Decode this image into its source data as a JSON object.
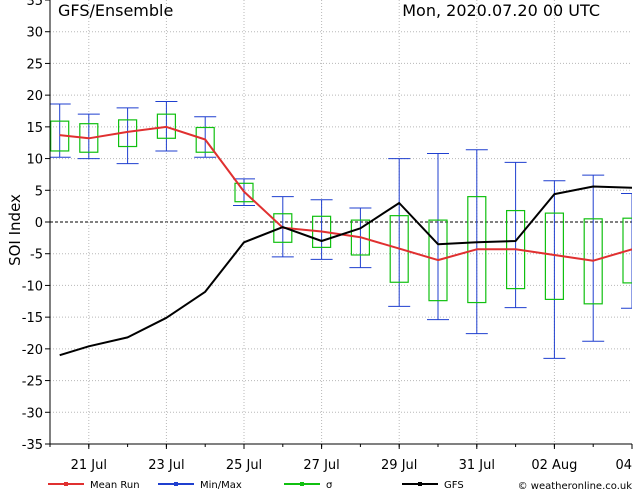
{
  "header": {
    "left": "GFS/Ensemble",
    "right": "Mon, 2020.07.20   00 UTC"
  },
  "credit": "© weatheronline.co.uk",
  "chart_data": {
    "type": "line",
    "title": "GFS/Ensemble",
    "ylabel": "SOI Index",
    "xlabel": "",
    "ylim": [
      -35,
      35
    ],
    "yticks": [
      -35,
      -30,
      -25,
      -20,
      -15,
      -10,
      -5,
      0,
      5,
      10,
      15,
      20,
      25,
      30,
      35
    ],
    "xlim": [
      20.0,
      35.0
    ],
    "xtick_values": [
      21,
      23,
      25,
      27,
      29,
      31,
      33,
      35
    ],
    "xtick_labels": [
      "21 Jul",
      "23 Jul",
      "25 Jul",
      "27 Jul",
      "29 Jul",
      "31 Jul",
      "02 Aug",
      "04"
    ],
    "grid": true,
    "zero_line": true,
    "colors": {
      "mean": "#e03030",
      "minmax": "#1f3fcf",
      "sigma": "#10c010",
      "gfs": "#000000"
    },
    "legend": [
      {
        "key": "mean",
        "label": "Mean Run"
      },
      {
        "key": "minmax",
        "label": "Min/Max"
      },
      {
        "key": "sigma",
        "label": "σ"
      },
      {
        "key": "gfs",
        "label": "GFS"
      }
    ],
    "x": [
      20.25,
      21.0,
      22.0,
      23.0,
      24.0,
      25.0,
      26.0,
      27.0,
      28.0,
      29.0,
      30.0,
      31.0,
      32.0,
      33.0,
      34.0,
      35.0
    ],
    "series": [
      {
        "name": "Mean Run",
        "key": "mean",
        "values": [
          13.7,
          13.2,
          14.2,
          15.0,
          13.0,
          4.8,
          -0.9,
          -1.5,
          -2.4,
          -4.2,
          -6.0,
          -4.3,
          -4.3,
          -5.2,
          -6.1,
          -4.3
        ]
      },
      {
        "name": "GFS",
        "key": "gfs",
        "values": [
          -21.0,
          -19.6,
          -18.2,
          -15.1,
          -11.0,
          -3.2,
          -0.8,
          -3.0,
          -1.0,
          3.0,
          -3.5,
          -3.2,
          -3.0,
          4.4,
          5.6,
          5.4
        ]
      }
    ],
    "minmax": [
      {
        "x": 20.25,
        "min": 10.2,
        "max": 18.6
      },
      {
        "x": 21.0,
        "min": 10.0,
        "max": 17.0
      },
      {
        "x": 22.0,
        "min": 9.2,
        "max": 18.0
      },
      {
        "x": 23.0,
        "min": 11.2,
        "max": 19.0
      },
      {
        "x": 24.0,
        "min": 10.2,
        "max": 16.6
      },
      {
        "x": 25.0,
        "min": 2.6,
        "max": 6.8
      },
      {
        "x": 26.0,
        "min": -5.5,
        "max": 4.0
      },
      {
        "x": 27.0,
        "min": -5.9,
        "max": 3.5
      },
      {
        "x": 28.0,
        "min": -7.2,
        "max": 2.2
      },
      {
        "x": 29.0,
        "min": -13.3,
        "max": 10.0
      },
      {
        "x": 30.0,
        "min": -15.4,
        "max": 10.8
      },
      {
        "x": 31.0,
        "min": -17.6,
        "max": 11.4
      },
      {
        "x": 32.0,
        "min": -13.5,
        "max": 9.4
      },
      {
        "x": 33.0,
        "min": -21.5,
        "max": 6.5
      },
      {
        "x": 34.0,
        "min": -18.8,
        "max": 7.4
      },
      {
        "x": 35.0,
        "min": -13.6,
        "max": 4.5
      }
    ],
    "sigma": [
      {
        "x": 20.25,
        "low": 11.2,
        "high": 15.9
      },
      {
        "x": 21.0,
        "low": 11.0,
        "high": 15.5
      },
      {
        "x": 22.0,
        "low": 11.9,
        "high": 16.1
      },
      {
        "x": 23.0,
        "low": 13.2,
        "high": 17.0
      },
      {
        "x": 24.0,
        "low": 11.0,
        "high": 14.9
      },
      {
        "x": 25.0,
        "low": 3.2,
        "high": 6.1
      },
      {
        "x": 26.0,
        "low": -3.2,
        "high": 1.3
      },
      {
        "x": 27.0,
        "low": -4.0,
        "high": 0.9
      },
      {
        "x": 28.0,
        "low": -5.2,
        "high": 0.3
      },
      {
        "x": 29.0,
        "low": -9.5,
        "high": 1.0
      },
      {
        "x": 30.0,
        "low": -12.4,
        "high": 0.3
      },
      {
        "x": 31.0,
        "low": -12.7,
        "high": 4.0
      },
      {
        "x": 32.0,
        "low": -10.5,
        "high": 1.8
      },
      {
        "x": 33.0,
        "low": -12.2,
        "high": 1.4
      },
      {
        "x": 34.0,
        "low": -12.9,
        "high": 0.5
      },
      {
        "x": 35.0,
        "low": -9.6,
        "high": 0.6
      }
    ]
  }
}
